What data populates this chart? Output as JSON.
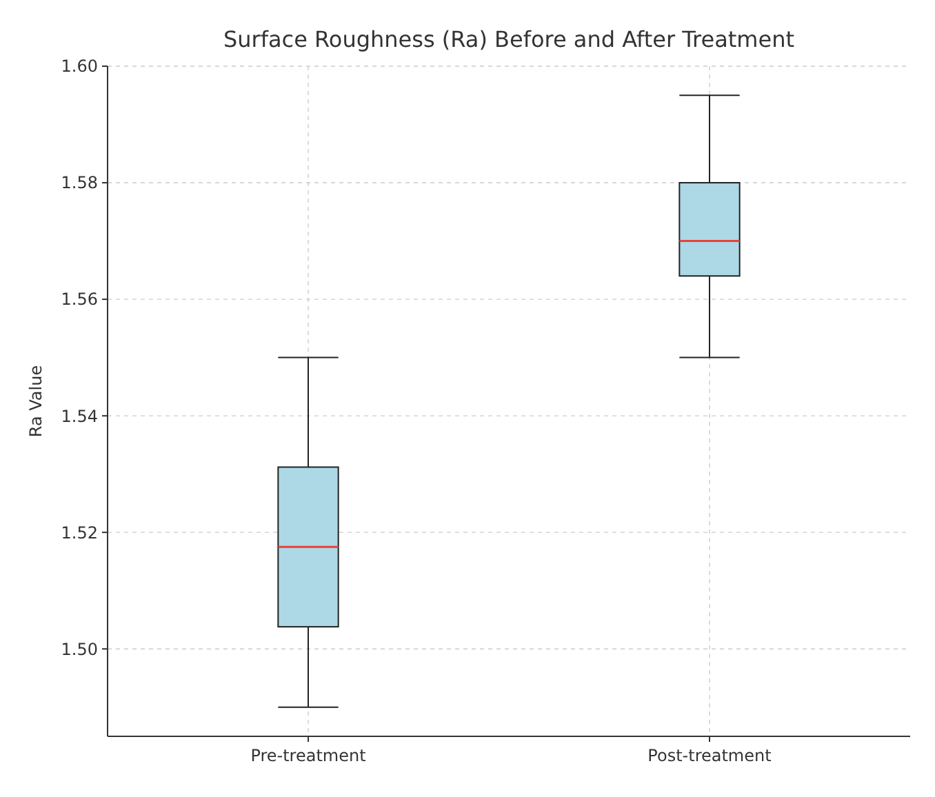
{
  "chart_data": {
    "type": "box",
    "title": "Surface Roughness (Ra) Before and After Treatment",
    "ylabel": "Ra Value",
    "categories": [
      "Pre-treatment",
      "Post-treatment"
    ],
    "boxes": [
      {
        "low": 1.49,
        "q1": 1.5038,
        "median": 1.5175,
        "q3": 1.5312,
        "high": 1.55
      },
      {
        "low": 1.55,
        "q1": 1.564,
        "median": 1.57,
        "q3": 1.58,
        "high": 1.595
      }
    ],
    "color": "#add8e6",
    "ylim": [
      1.485,
      1.6
    ],
    "yticks": [
      {
        "value": 1.5,
        "label": "1.50"
      },
      {
        "value": 1.52,
        "label": "1.52"
      },
      {
        "value": 1.54,
        "label": "1.54"
      },
      {
        "value": 1.56,
        "label": "1.56"
      },
      {
        "value": 1.58,
        "label": "1.58"
      },
      {
        "value": 1.6,
        "label": "1.60"
      }
    ],
    "grid": true
  }
}
